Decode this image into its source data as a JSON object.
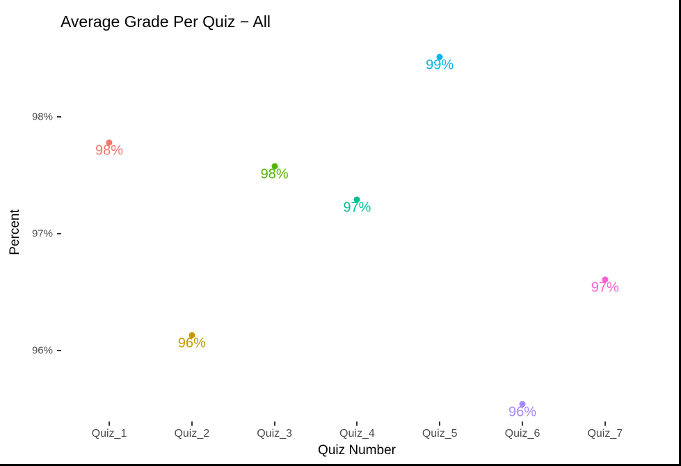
{
  "chart_data": {
    "type": "scatter",
    "title": "Average Grade Per Quiz − All",
    "xlabel": "Quiz Number",
    "ylabel": "Percent",
    "categories": [
      "Quiz_1",
      "Quiz_2",
      "Quiz_3",
      "Quiz_4",
      "Quiz_5",
      "Quiz_6",
      "Quiz_7"
    ],
    "values": [
      97.78,
      96.13,
      97.58,
      97.29,
      98.51,
      95.54,
      96.61
    ],
    "data_labels": [
      "98%",
      "96%",
      "98%",
      "97%",
      "99%",
      "96%",
      "97%"
    ],
    "colors": [
      "#F8766D",
      "#C49A00",
      "#53B400",
      "#00C094",
      "#00B6EB",
      "#A58AFF",
      "#FB61D7"
    ],
    "yticks": [
      "96%",
      "97%",
      "98%"
    ],
    "ytick_values": [
      96,
      97,
      98
    ],
    "ylim": [
      95.4,
      98.65
    ],
    "grid": false,
    "legend": "none"
  }
}
